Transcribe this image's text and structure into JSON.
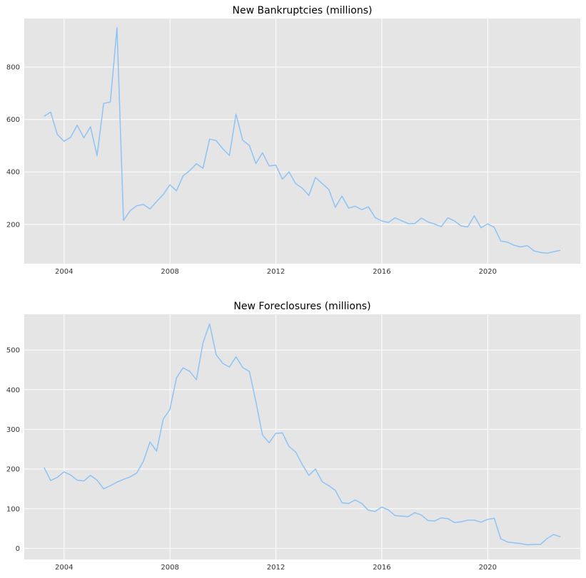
{
  "chart_data": [
    {
      "type": "line",
      "title": "New Bankruptcies (millions)",
      "xlabel": "",
      "ylabel": "",
      "xlim": [
        "2002-07-01",
        "2023-07-01"
      ],
      "ylim": [
        50,
        985
      ],
      "grid": true,
      "line_color": "#8EC3F5",
      "background_color": "#E5E5E5",
      "grid_color": "#FFFFFF",
      "x_ticks": [
        "2004",
        "2008",
        "2012",
        "2016",
        "2020"
      ],
      "y_ticks": [
        200,
        400,
        600,
        800
      ],
      "series": [
        {
          "x": [
            "2003-03-31",
            "2003-06-30",
            "2003-09-30",
            "2003-12-31",
            "2004-03-31",
            "2004-06-30",
            "2004-09-30",
            "2004-12-31",
            "2005-03-31",
            "2005-06-30",
            "2005-09-30",
            "2005-12-31",
            "2006-03-31",
            "2006-06-30",
            "2006-09-30",
            "2006-12-31",
            "2007-03-31",
            "2007-06-30",
            "2007-09-30",
            "2007-12-31",
            "2008-03-31",
            "2008-06-30",
            "2008-09-30",
            "2008-12-31",
            "2009-03-31",
            "2009-06-30",
            "2009-09-30",
            "2009-12-31",
            "2010-03-31",
            "2010-06-30",
            "2010-09-30",
            "2010-12-31",
            "2011-03-31",
            "2011-06-30",
            "2011-09-30",
            "2011-12-31",
            "2012-03-31",
            "2012-06-30",
            "2012-09-30",
            "2012-12-31",
            "2013-03-31",
            "2013-06-30",
            "2013-09-30",
            "2013-12-31",
            "2014-03-31",
            "2014-06-30",
            "2014-09-30",
            "2014-12-31",
            "2015-03-31",
            "2015-06-30",
            "2015-09-30",
            "2015-12-31",
            "2016-03-31",
            "2016-06-30",
            "2016-09-30",
            "2016-12-31",
            "2017-03-31",
            "2017-06-30",
            "2017-09-30",
            "2017-12-31",
            "2018-03-31",
            "2018-06-30",
            "2018-09-30",
            "2018-12-31",
            "2019-03-31",
            "2019-06-30",
            "2019-09-30",
            "2019-12-31",
            "2020-03-31",
            "2020-06-30",
            "2020-09-30",
            "2020-12-31",
            "2021-03-31",
            "2021-06-30",
            "2021-09-30",
            "2021-12-31",
            "2022-03-31",
            "2022-06-30",
            "2022-09-30"
          ],
          "values": [
            612,
            628,
            543,
            517,
            532,
            578,
            530,
            572,
            462,
            661,
            667,
            950,
            215,
            252,
            271,
            276,
            259,
            287,
            314,
            351,
            328,
            385,
            405,
            431,
            414,
            525,
            519,
            488,
            463,
            620,
            521,
            501,
            432,
            473,
            423,
            426,
            372,
            400,
            355,
            338,
            310,
            379,
            356,
            333,
            265,
            308,
            262,
            269,
            256,
            267,
            226,
            213,
            207,
            225,
            214,
            203,
            203,
            224,
            209,
            201,
            191,
            225,
            213,
            194,
            190,
            233,
            187,
            202,
            189,
            136,
            132,
            120,
            114,
            119,
            99,
            93,
            90,
            96,
            101
          ]
        }
      ]
    },
    {
      "type": "line",
      "title": "New Foreclosures (millions)",
      "xlabel": "",
      "ylabel": "",
      "xlim": [
        "2002-07-01",
        "2023-07-01"
      ],
      "ylim": [
        -28,
        590
      ],
      "grid": true,
      "line_color": "#8EC3F5",
      "background_color": "#E5E5E5",
      "grid_color": "#FFFFFF",
      "x_ticks": [
        "2004",
        "2008",
        "2012",
        "2016",
        "2020"
      ],
      "y_ticks": [
        0,
        100,
        200,
        300,
        400,
        500
      ],
      "series": [
        {
          "x": [
            "2003-03-31",
            "2003-06-30",
            "2003-09-30",
            "2003-12-31",
            "2004-03-31",
            "2004-06-30",
            "2004-09-30",
            "2004-12-31",
            "2005-03-31",
            "2005-06-30",
            "2005-09-30",
            "2005-12-31",
            "2006-03-31",
            "2006-06-30",
            "2006-09-30",
            "2006-12-31",
            "2007-03-31",
            "2007-06-30",
            "2007-09-30",
            "2007-12-31",
            "2008-03-31",
            "2008-06-30",
            "2008-09-30",
            "2008-12-31",
            "2009-03-31",
            "2009-06-30",
            "2009-09-30",
            "2009-12-31",
            "2010-03-31",
            "2010-06-30",
            "2010-09-30",
            "2010-12-31",
            "2011-03-31",
            "2011-06-30",
            "2011-09-30",
            "2011-12-31",
            "2012-03-31",
            "2012-06-30",
            "2012-09-30",
            "2012-12-31",
            "2013-03-31",
            "2013-06-30",
            "2013-09-30",
            "2013-12-31",
            "2014-03-31",
            "2014-06-30",
            "2014-09-30",
            "2014-12-31",
            "2015-03-31",
            "2015-06-30",
            "2015-09-30",
            "2015-12-31",
            "2016-03-31",
            "2016-06-30",
            "2016-09-30",
            "2016-12-31",
            "2017-03-31",
            "2017-06-30",
            "2017-09-30",
            "2017-12-31",
            "2018-03-31",
            "2018-06-30",
            "2018-09-30",
            "2018-12-31",
            "2019-03-31",
            "2019-06-30",
            "2019-09-30",
            "2019-12-31",
            "2020-03-31",
            "2020-06-30",
            "2020-09-30",
            "2020-12-31",
            "2021-03-31",
            "2021-06-30",
            "2021-09-30",
            "2021-12-31",
            "2022-03-31",
            "2022-06-30",
            "2022-09-30"
          ],
          "values": [
            204,
            171,
            179,
            193,
            185,
            172,
            170,
            184,
            172,
            150,
            158,
            167,
            174,
            180,
            190,
            220,
            268,
            245,
            326,
            350,
            430,
            455,
            446,
            425,
            518,
            566,
            488,
            466,
            457,
            483,
            456,
            446,
            370,
            286,
            266,
            290,
            291,
            257,
            243,
            211,
            184,
            200,
            168,
            158,
            146,
            115,
            113,
            122,
            113,
            96,
            93,
            104,
            97,
            83,
            81,
            80,
            90,
            84,
            70,
            69,
            77,
            75,
            65,
            67,
            71,
            71,
            66,
            73,
            76,
            24,
            16,
            14,
            12,
            9,
            10,
            10,
            25,
            35,
            29
          ]
        }
      ]
    }
  ]
}
